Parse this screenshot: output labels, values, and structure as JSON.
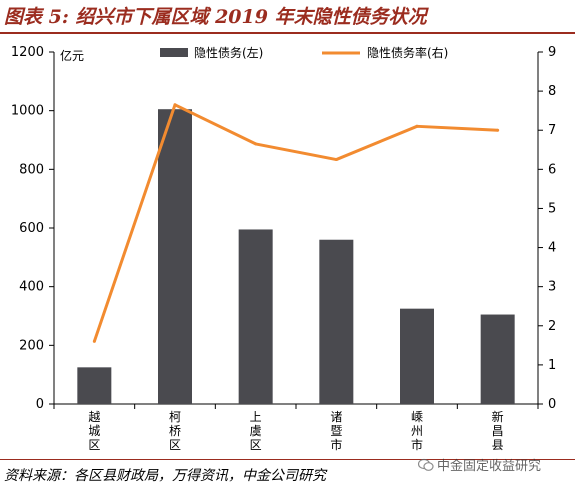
{
  "header": {
    "title": "图表 5: 绍兴市下属区域 2019 年末隐性债务状况"
  },
  "footer": {
    "source": "资料来源：各区县财政局，万得资讯，中金公司研究",
    "watermark": "中金固定收益研究",
    "watermark_icon": "wechat-icon"
  },
  "chart_data": {
    "type": "bar",
    "categories": [
      "越城区",
      "柯桥区",
      "上虞区",
      "诸暨市",
      "嵊州市",
      "新昌县"
    ],
    "ylabel_left": "亿元",
    "ylim_left": [
      0,
      1200
    ],
    "yticks_left": [
      0,
      200,
      400,
      600,
      800,
      1000,
      1200
    ],
    "ylim_right": [
      0,
      9
    ],
    "yticks_right": [
      0,
      1,
      2,
      3,
      4,
      5,
      6,
      7,
      8,
      9
    ],
    "series": [
      {
        "name": "隐性债务(左)",
        "type": "bar",
        "axis": "left",
        "color": "#4a4a4f",
        "values": [
          125,
          1005,
          595,
          560,
          325,
          305
        ]
      },
      {
        "name": "隐性债务率(右)",
        "type": "line",
        "axis": "right",
        "color": "#f28b30",
        "values": [
          1.6,
          7.65,
          6.65,
          6.25,
          7.1,
          7.0
        ]
      }
    ],
    "legend_position": "top",
    "grid": false
  }
}
